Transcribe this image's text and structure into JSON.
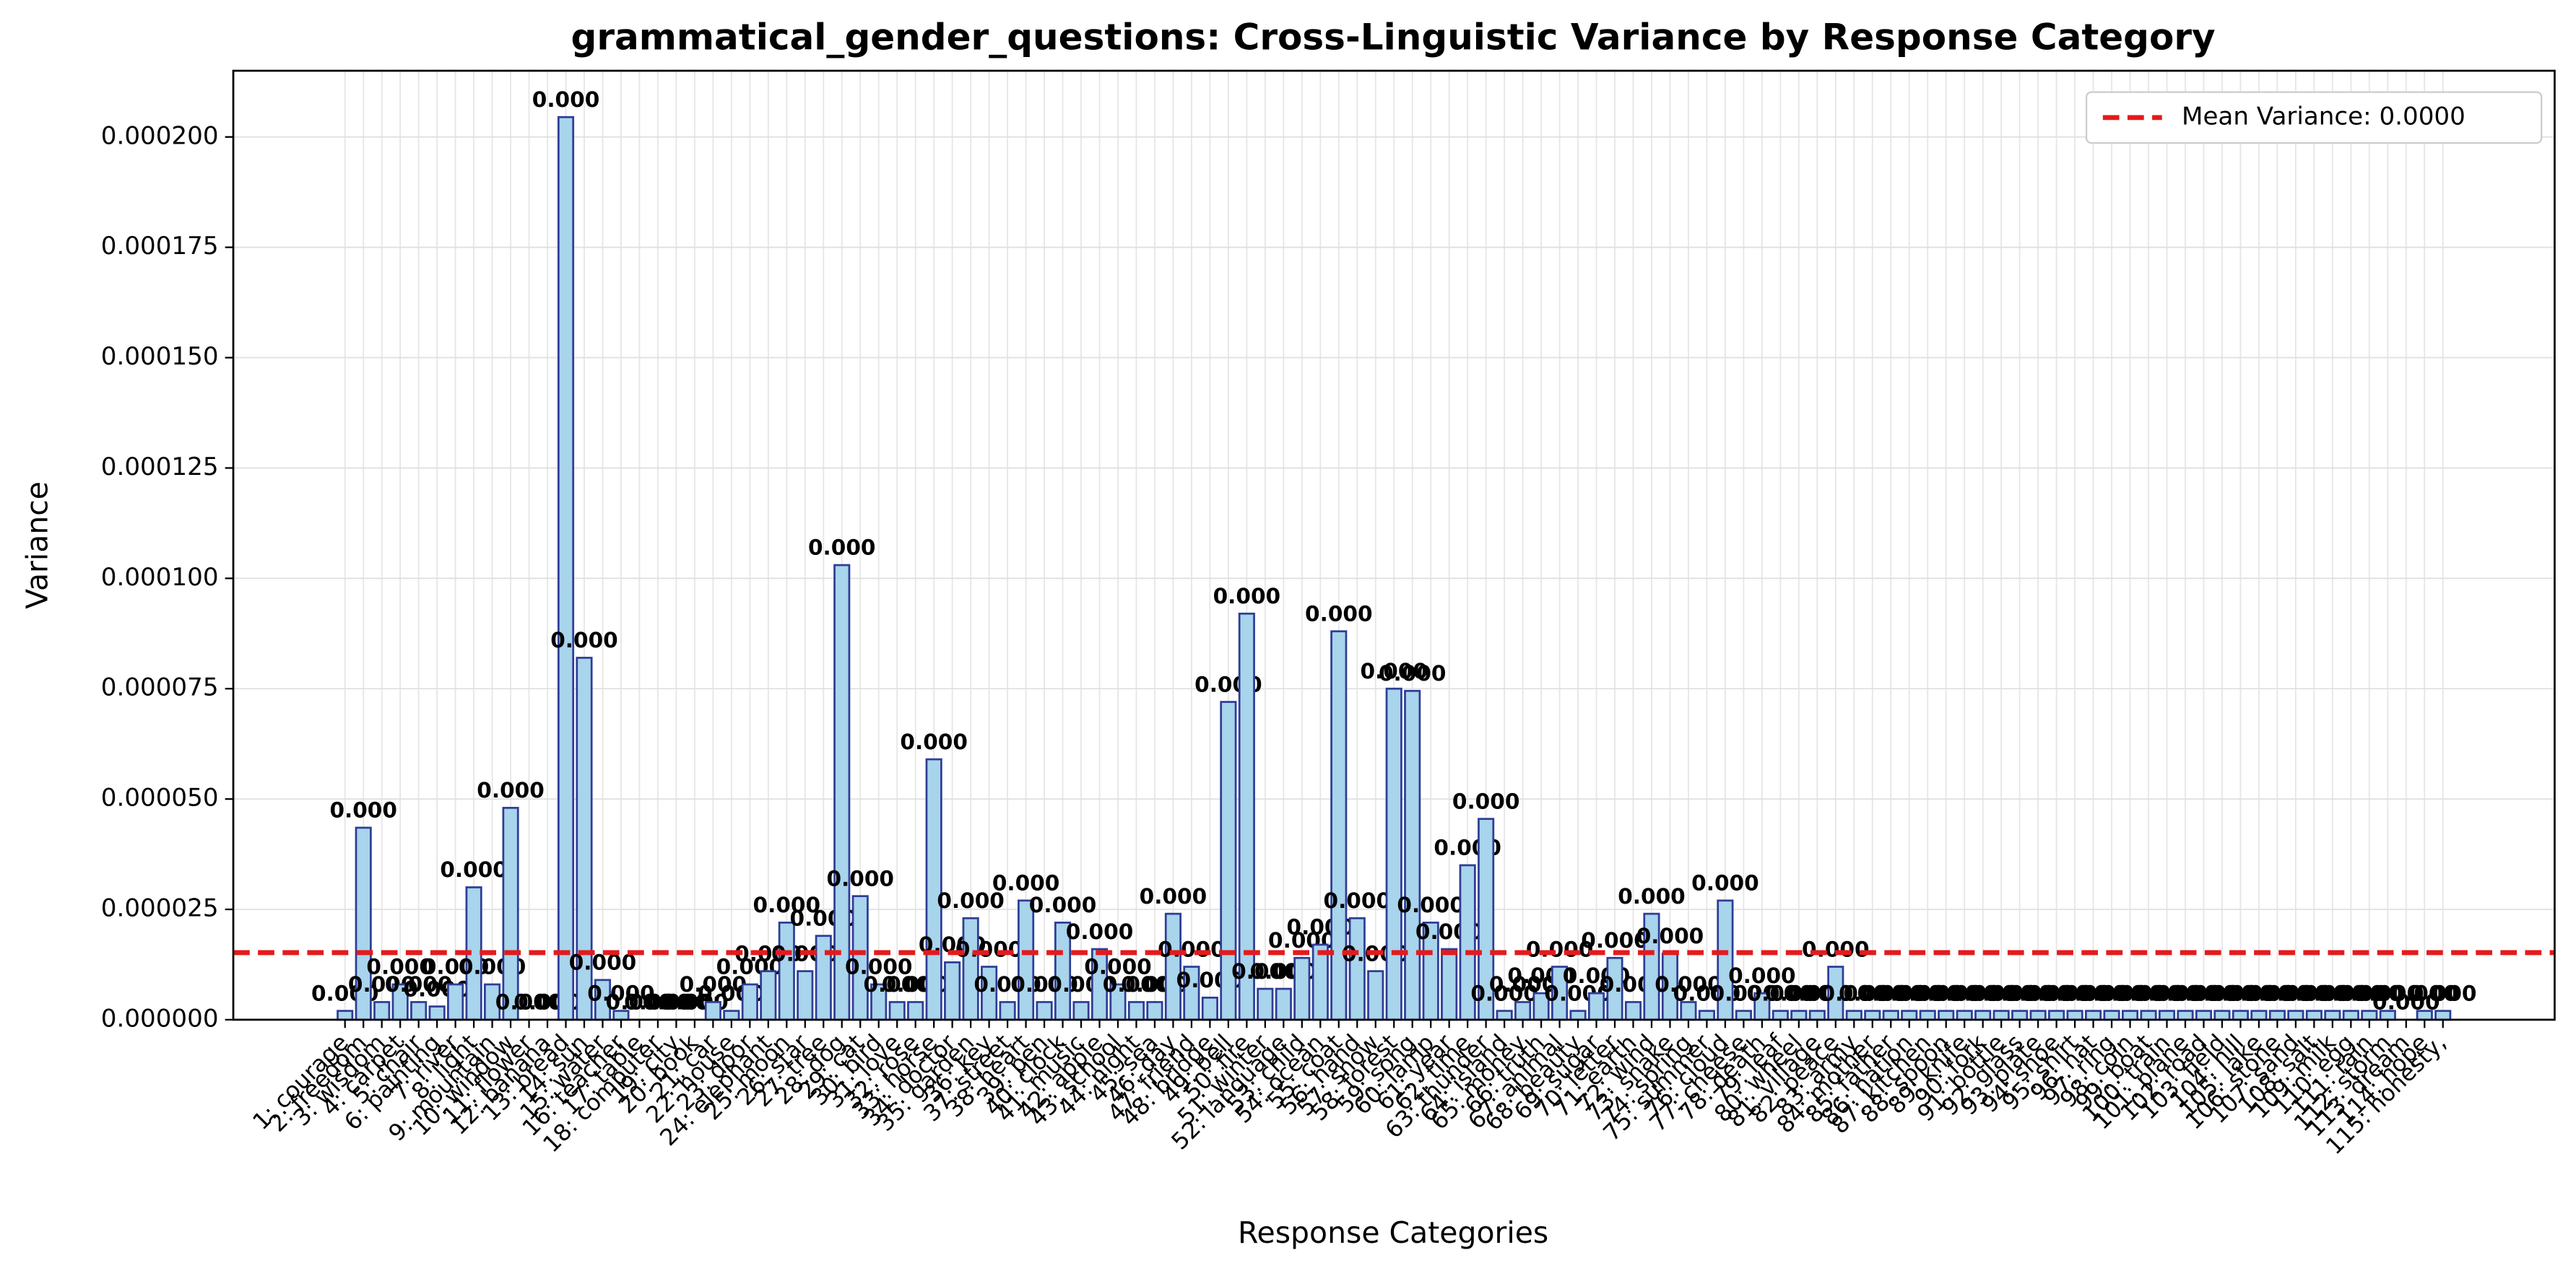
{
  "chart_data": {
    "type": "bar",
    "title": "grammatical_gender_questions: Cross-Linguistic Variance by Response Category",
    "xlabel": "Response Categories",
    "ylabel": "Variance",
    "categories": [
      "1: courage",
      "2: freedom",
      "3: wisdom",
      "4: carpet",
      "5: chair",
      "6: painting",
      "7: river",
      "8: light",
      "9: mountain",
      "10: window",
      "11: flower",
      "12: banana",
      "13: bread",
      "14: sun",
      "15: water",
      "16: teacher",
      "17: table",
      "18: computer",
      "19: city",
      "20: book",
      "21: car",
      "22: house",
      "23: door",
      "24: elephant",
      "25: moon",
      "26: star",
      "27: tree",
      "28: dog",
      "29: cat",
      "30: bird",
      "31: love",
      "32: rose",
      "33: horse",
      "34: doctor",
      "35: garden",
      "36: key",
      "37: street",
      "38: heart",
      "39: pen",
      "40: clock",
      "41: music",
      "42: apple",
      "43: school",
      "44: night",
      "45: sea",
      "46: day",
      "47: friend",
      "48: bridge",
      "49: bell",
      "50: fire",
      "51: winter",
      "52: language",
      "53: child",
      "54: ocean",
      "55: coat",
      "56: hand",
      "57: snow",
      "58: forest",
      "59: song",
      "60: lamp",
      "61: year",
      "62: time",
      "63: thunder",
      "64: island",
      "65: money",
      "66: truth",
      "67: animal",
      "68: beauty",
      "69: sugar",
      "70: letter",
      "71: earth",
      "72: wind",
      "73: snake",
      "74: spring",
      "75: summer",
      "76: cloud",
      "77: cheese",
      "78: death",
      "79: leaf",
      "80: wheel",
      "81: village",
      "82: peace",
      "83: army",
      "84: mother",
      "85: father",
      "86: nation",
      "87: kitchen",
      "88: spoon",
      "89: knife",
      "90: fork",
      "91: bottle",
      "92: glass",
      "93: plate",
      "94: shoe",
      "95: shirt",
      "96: hat",
      "97: ring",
      "98: coin",
      "99: boat",
      "100: train",
      "101: plane",
      "102: road",
      "103: field",
      "104: hill",
      "105: lake",
      "106: stone",
      "107: sand",
      "108: salt",
      "109: milk",
      "110: egg",
      "111: rain",
      "112: storm",
      "113: dream",
      "114: hope",
      "115: honesty,"
    ],
    "values": [
      2e-06,
      4.35e-05,
      4e-06,
      8e-06,
      4e-06,
      3e-06,
      8e-06,
      3e-05,
      8e-06,
      4.8e-05,
      0,
      0,
      0.0002045,
      8.2e-05,
      9e-06,
      2e-06,
      0,
      0,
      0,
      0,
      4e-06,
      2e-06,
      8e-06,
      1.1e-05,
      2.2e-05,
      1.1e-05,
      1.9e-05,
      0.000103,
      2.8e-05,
      8e-06,
      4e-06,
      4e-06,
      5.9e-05,
      1.3e-05,
      2.3e-05,
      1.2e-05,
      4e-06,
      2.7e-05,
      4e-06,
      2.2e-05,
      4e-06,
      1.6e-05,
      8e-06,
      4e-06,
      4e-06,
      2.4e-05,
      1.2e-05,
      5e-06,
      7.2e-05,
      9.2e-05,
      7e-06,
      7e-06,
      1.4e-05,
      1.7e-05,
      8.8e-05,
      2.3e-05,
      1.1e-05,
      7.5e-05,
      7.45e-05,
      2.2e-05,
      1.6e-05,
      3.5e-05,
      4.55e-05,
      2e-06,
      4e-06,
      6e-06,
      1.2e-05,
      2e-06,
      6e-06,
      1.4e-05,
      4e-06,
      2.4e-05,
      1.5e-05,
      4e-06,
      2e-06,
      2.7e-05,
      2e-06,
      6e-06,
      2e-06,
      2e-06,
      2e-06,
      1.2e-05,
      2e-06,
      2e-06,
      2e-06,
      2e-06,
      2e-06,
      2e-06,
      2e-06,
      2e-06,
      2e-06,
      2e-06,
      2e-06,
      2e-06,
      2e-06,
      2e-06,
      2e-06,
      2e-06,
      2e-06,
      2e-06,
      2e-06,
      2e-06,
      2e-06,
      2e-06,
      2e-06,
      2e-06,
      2e-06,
      2e-06,
      2e-06,
      2e-06,
      2e-06,
      2e-06,
      0,
      2e-06,
      2e-06
    ],
    "value_labels": [
      "0.000",
      "0.000",
      "0.000",
      "0.000",
      "0.000",
      "0.000",
      "0.000",
      "0.000",
      "0.000",
      "0.000",
      "0.000",
      "0.000",
      "0.000",
      "0.000",
      "0.000",
      "0.000",
      "0.000",
      "0.000",
      "0.000",
      "0.000",
      "0.000",
      "0.000",
      "0.000",
      "0.000",
      "0.000",
      "0.000",
      "0.000",
      "0.000",
      "0.000",
      "0.000",
      "0.000",
      "0.000",
      "0.000",
      "0.000",
      "0.000",
      "0.000",
      "0.000",
      "0.000",
      "0.000",
      "0.000",
      "0.000",
      "0.000",
      "0.000",
      "0.000",
      "0.000",
      "0.000",
      "0.000",
      "0.000",
      "0.000",
      "0.000",
      "0.000",
      "0.000",
      "0.000",
      "0.000",
      "0.000",
      "0.000",
      "0.000",
      "0.000",
      "0.000",
      "0.000",
      "0.000",
      "0.000",
      "0.000",
      "0.000",
      "0.000",
      "0.000",
      "0.000",
      "0.000",
      "0.000",
      "0.000",
      "0.000",
      "0.000",
      "0.000",
      "0.000",
      "0.000",
      "0.000",
      "0.000",
      "0.000",
      "0.000",
      "0.000",
      "0.000",
      "0.000",
      "0.000",
      "0.000",
      "0.000",
      "0.000",
      "0.000",
      "0.000",
      "0.000",
      "0.000",
      "0.000",
      "0.000",
      "0.000",
      "0.000",
      "0.000",
      "0.000",
      "0.000",
      "0.000",
      "0.000",
      "0.000",
      "0.000",
      "0.000",
      "0.000",
      "0.000",
      "0.000",
      "0.000",
      "0.000",
      "0.000",
      "0.000",
      "0.000",
      "0.000",
      "0.000",
      "0.000",
      "0.000",
      "0.000"
    ],
    "color": "#a8d4ec",
    "edgecolor": "#2e3d96",
    "mean_line": {
      "value": 1.52e-05,
      "label": "Mean Variance: 0.0000",
      "color": "#e41a1c"
    },
    "legend": "upper right",
    "grid": true,
    "ylim": [
      0,
      0.000215
    ],
    "yticks": [
      {
        "value": 0,
        "label": "0.000000"
      },
      {
        "value": 2.5e-05,
        "label": "0.000025"
      },
      {
        "value": 5e-05,
        "label": "0.000050"
      },
      {
        "value": 7.5e-05,
        "label": "0.000075"
      },
      {
        "value": 0.0001,
        "label": "0.000100"
      },
      {
        "value": 0.000125,
        "label": "0.000125"
      },
      {
        "value": 0.00015,
        "label": "0.000150"
      },
      {
        "value": 0.000175,
        "label": "0.000175"
      },
      {
        "value": 0.0002,
        "label": "0.000200"
      }
    ]
  }
}
